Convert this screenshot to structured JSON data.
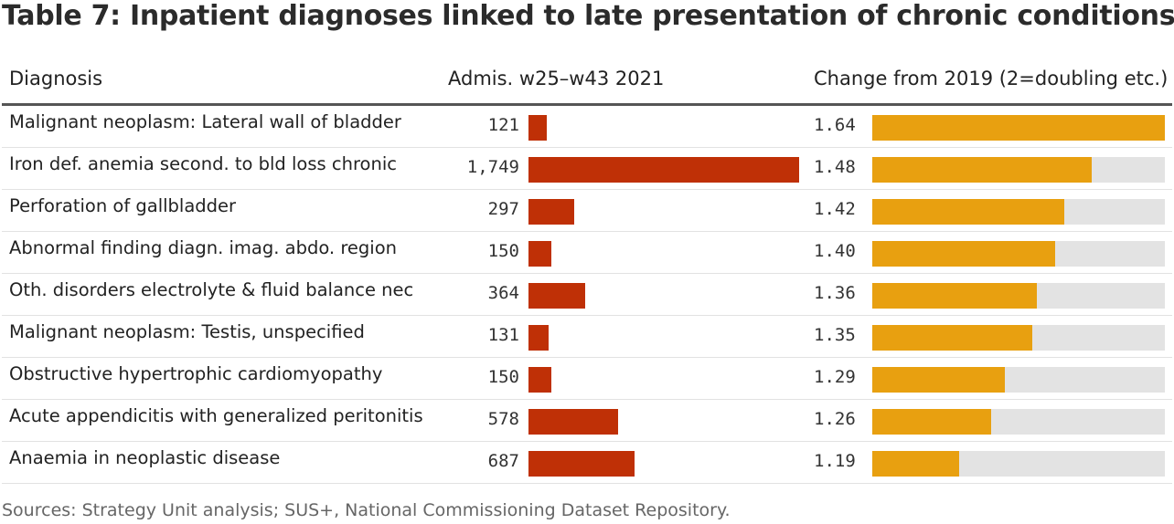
{
  "title": "Table 7: Inpatient diagnoses linked to late presentation of chronic conditions",
  "headers": {
    "diagnosis": "Diagnosis",
    "admissions": "Admis. w25–w43 2021",
    "change": "Change from 2019 (2=doubling etc.)"
  },
  "source": "Sources: Strategy Unit analysis; SUS+, National Commissioning Dataset Repository.",
  "colors": {
    "admissions_bar": "#bf3006",
    "change_bar": "#e8a010",
    "change_track": "#e3e3e3"
  },
  "chart_data": {
    "type": "table",
    "title": "Table 7: Inpatient diagnoses linked to late presentation of chronic conditions",
    "columns": [
      "Diagnosis",
      "Admis. w25–w43 2021",
      "Change from 2019 (2=doubling etc.)"
    ],
    "admissions_max": 1749,
    "change_range": [
      1,
      1.64
    ],
    "rows": [
      {
        "diagnosis": "Malignant neoplasm: Lateral wall of bladder",
        "admissions": 121,
        "admissions_label": "121",
        "change": 1.64,
        "change_label": "1.64"
      },
      {
        "diagnosis": "Iron def. anemia second. to bld loss chronic",
        "admissions": 1749,
        "admissions_label": "1,749",
        "change": 1.48,
        "change_label": "1.48"
      },
      {
        "diagnosis": "Perforation of gallbladder",
        "admissions": 297,
        "admissions_label": "297",
        "change": 1.42,
        "change_label": "1.42"
      },
      {
        "diagnosis": "Abnormal finding diagn. imag. abdo. region",
        "admissions": 150,
        "admissions_label": "150",
        "change": 1.4,
        "change_label": "1.40"
      },
      {
        "diagnosis": "Oth. disorders electrolyte & fluid balance nec",
        "admissions": 364,
        "admissions_label": "364",
        "change": 1.36,
        "change_label": "1.36"
      },
      {
        "diagnosis": "Malignant neoplasm: Testis, unspecified",
        "admissions": 131,
        "admissions_label": "131",
        "change": 1.35,
        "change_label": "1.35"
      },
      {
        "diagnosis": "Obstructive hypertrophic cardiomyopathy",
        "admissions": 150,
        "admissions_label": "150",
        "change": 1.29,
        "change_label": "1.29"
      },
      {
        "diagnosis": "Acute appendicitis with generalized peritonitis",
        "admissions": 578,
        "admissions_label": "578",
        "change": 1.26,
        "change_label": "1.26"
      },
      {
        "diagnosis": "Anaemia in neoplastic disease",
        "admissions": 687,
        "admissions_label": "687",
        "change": 1.19,
        "change_label": "1.19"
      }
    ]
  }
}
